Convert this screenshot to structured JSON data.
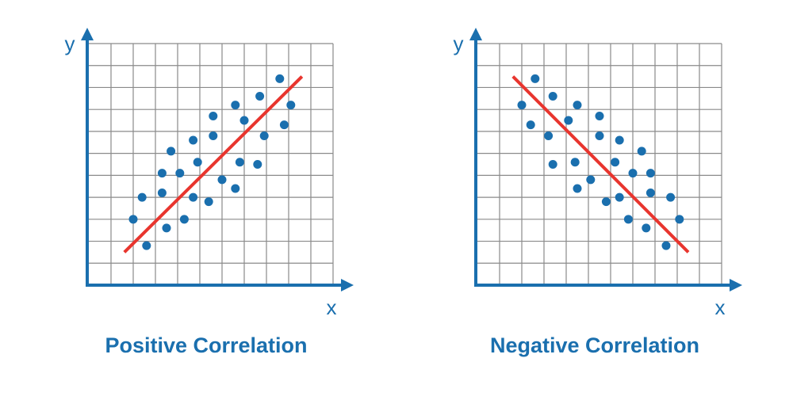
{
  "chart_data": [
    {
      "type": "scatter",
      "title": "Positive Correlation",
      "xlabel": "x",
      "ylabel": "y",
      "xlim": [
        0,
        11
      ],
      "ylim": [
        0,
        11
      ],
      "grid": true,
      "series": [
        {
          "color": "#1a6fae",
          "mark": "dot",
          "x": [
            2.0,
            2.4,
            2.6,
            3.3,
            3.3,
            3.5,
            3.7,
            4.1,
            4.3,
            4.7,
            4.7,
            4.9,
            5.4,
            5.6,
            5.6,
            6.0,
            6.6,
            6.8,
            6.6,
            7.0,
            7.6,
            7.7,
            7.9,
            8.6,
            8.8,
            9.1
          ],
          "values": [
            3.0,
            4.0,
            1.8,
            4.2,
            5.1,
            2.6,
            6.1,
            5.1,
            3.0,
            4.0,
            6.6,
            5.6,
            3.8,
            7.7,
            6.8,
            4.8,
            8.2,
            5.6,
            4.4,
            7.5,
            5.5,
            8.6,
            6.8,
            9.4,
            7.3,
            8.2
          ]
        },
        {
          "color": "#e8352e",
          "mark": "line",
          "x": [
            1.6,
            9.6
          ],
          "values": [
            1.5,
            9.5
          ]
        }
      ]
    },
    {
      "type": "scatter",
      "title": "Negative Correlation",
      "xlabel": "x",
      "ylabel": "y",
      "xlim": [
        0,
        11
      ],
      "ylim": [
        0,
        11
      ],
      "grid": true,
      "series": [
        {
          "color": "#1a6fae",
          "mark": "dot",
          "x": [
            2.0,
            2.4,
            2.6,
            3.2,
            3.4,
            3.4,
            4.1,
            4.4,
            4.5,
            4.5,
            5.1,
            5.5,
            5.5,
            5.8,
            6.2,
            6.4,
            6.4,
            6.8,
            7.0,
            7.4,
            7.6,
            7.8,
            7.8,
            8.5,
            8.7,
            9.1
          ],
          "values": [
            8.2,
            7.3,
            9.4,
            6.8,
            8.6,
            5.5,
            7.5,
            5.6,
            8.2,
            4.4,
            4.8,
            7.7,
            6.8,
            3.8,
            5.6,
            6.6,
            4.0,
            3.0,
            5.1,
            6.1,
            2.6,
            5.1,
            4.2,
            1.8,
            4.0,
            3.0
          ]
        },
        {
          "color": "#e8352e",
          "mark": "line",
          "x": [
            1.6,
            9.5
          ],
          "values": [
            9.5,
            1.5
          ]
        }
      ]
    }
  ]
}
